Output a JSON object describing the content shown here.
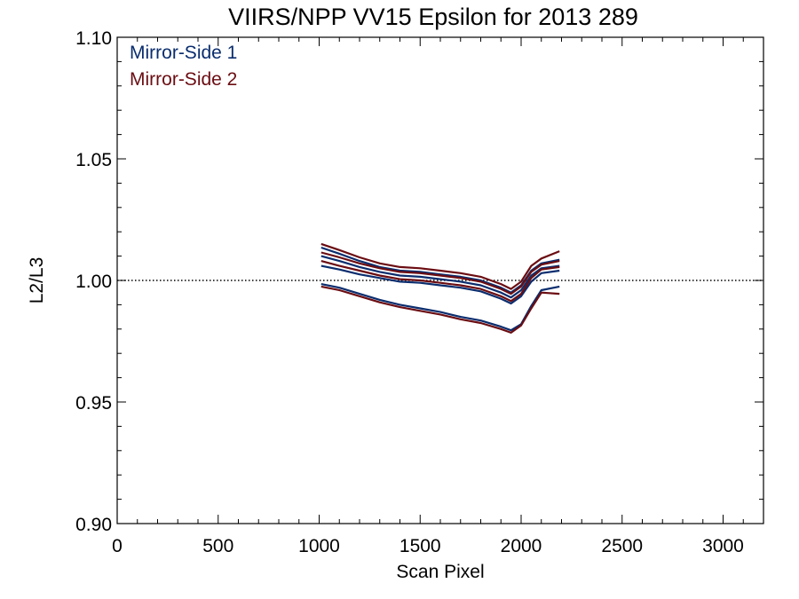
{
  "chart_data": {
    "type": "line",
    "title": "VIIRS/NPP VV15 Epsilon for 2013 289",
    "xlabel": "Scan Pixel",
    "ylabel": "L2/L3",
    "xlim": [
      0,
      3200
    ],
    "ylim": [
      0.9,
      1.1
    ],
    "x_ticks": [
      0,
      500,
      1000,
      1500,
      2000,
      2500,
      3000
    ],
    "y_ticks": [
      0.9,
      0.95,
      1.0,
      1.05,
      1.1
    ],
    "x_tick_labels": [
      "0",
      "500",
      "1000",
      "1500",
      "2000",
      "2500",
      "3000"
    ],
    "y_tick_labels": [
      "0.90",
      "0.95",
      "1.00",
      "1.05",
      "1.10"
    ],
    "reference_line": {
      "y": 1.0,
      "style": "dotted"
    },
    "legend_placement": "top-left",
    "series": [
      {
        "name": "Mirror-Side 1",
        "color": "#0a2d6e",
        "lines": [
          {
            "x": [
              1010,
              1100,
              1200,
              1300,
              1400,
              1500,
              1600,
              1700,
              1800,
              1900,
              1950,
              2000,
              2050,
              2100,
              2190
            ],
            "y": [
              1.0135,
              1.011,
              1.008,
              1.0055,
              1.004,
              1.0035,
              1.0025,
              1.0015,
              1.0,
              0.997,
              0.995,
              0.998,
              1.004,
              1.007,
              1.0085
            ]
          },
          {
            "x": [
              1010,
              1100,
              1200,
              1300,
              1400,
              1500,
              1600,
              1700,
              1800,
              1900,
              1950,
              2000,
              2050,
              2100,
              2190
            ],
            "y": [
              1.01,
              1.008,
              1.0055,
              1.0035,
              1.002,
              1.0015,
              1.0005,
              0.9995,
              0.998,
              0.995,
              0.993,
              0.996,
              1.002,
              1.005,
              1.006
            ]
          },
          {
            "x": [
              1010,
              1100,
              1200,
              1300,
              1400,
              1500,
              1600,
              1700,
              1800,
              1900,
              1950,
              2000,
              2050,
              2100,
              2190
            ],
            "y": [
              1.006,
              1.0045,
              1.0025,
              1.001,
              0.9995,
              0.999,
              0.998,
              0.997,
              0.9955,
              0.9925,
              0.9905,
              0.9935,
              0.9995,
              1.003,
              1.004
            ]
          },
          {
            "x": [
              1010,
              1100,
              1200,
              1300,
              1400,
              1500,
              1600,
              1700,
              1800,
              1900,
              1950,
              2000,
              2050,
              2100,
              2190
            ],
            "y": [
              0.9985,
              0.997,
              0.9945,
              0.992,
              0.99,
              0.9885,
              0.987,
              0.985,
              0.9835,
              0.981,
              0.9795,
              0.982,
              0.9895,
              0.996,
              0.9975
            ]
          }
        ]
      },
      {
        "name": "Mirror-Side 2",
        "color": "#6b0d12",
        "lines": [
          {
            "x": [
              1010,
              1100,
              1200,
              1300,
              1400,
              1500,
              1600,
              1700,
              1800,
              1900,
              1950,
              2000,
              2050,
              2100,
              2190
            ],
            "y": [
              1.015,
              1.0125,
              1.0095,
              1.007,
              1.0055,
              1.005,
              1.004,
              1.003,
              1.0015,
              0.9985,
              0.9965,
              0.9995,
              1.006,
              1.009,
              1.012
            ]
          },
          {
            "x": [
              1010,
              1100,
              1200,
              1300,
              1400,
              1500,
              1600,
              1700,
              1800,
              1900,
              1950,
              2000,
              2050,
              2100,
              2190
            ],
            "y": [
              1.0115,
              1.0095,
              1.007,
              1.005,
              1.0035,
              1.003,
              1.002,
              1.001,
              0.9995,
              0.9965,
              0.9945,
              0.9975,
              1.0035,
              1.0065,
              1.008
            ]
          },
          {
            "x": [
              1010,
              1100,
              1200,
              1300,
              1400,
              1500,
              1600,
              1700,
              1800,
              1900,
              1950,
              2000,
              2050,
              2100,
              2190
            ],
            "y": [
              1.008,
              1.006,
              1.004,
              1.002,
              1.0005,
              1.0,
              0.999,
              0.998,
              0.9965,
              0.9935,
              0.9915,
              0.9945,
              1.001,
              1.0045,
              1.0055
            ]
          },
          {
            "x": [
              1010,
              1100,
              1200,
              1300,
              1400,
              1500,
              1600,
              1700,
              1800,
              1900,
              1950,
              2000,
              2050,
              2100,
              2190
            ],
            "y": [
              0.9975,
              0.996,
              0.9935,
              0.991,
              0.989,
              0.9875,
              0.986,
              0.984,
              0.9825,
              0.98,
              0.9785,
              0.9815,
              0.9885,
              0.995,
              0.9945
            ]
          }
        ]
      }
    ]
  }
}
